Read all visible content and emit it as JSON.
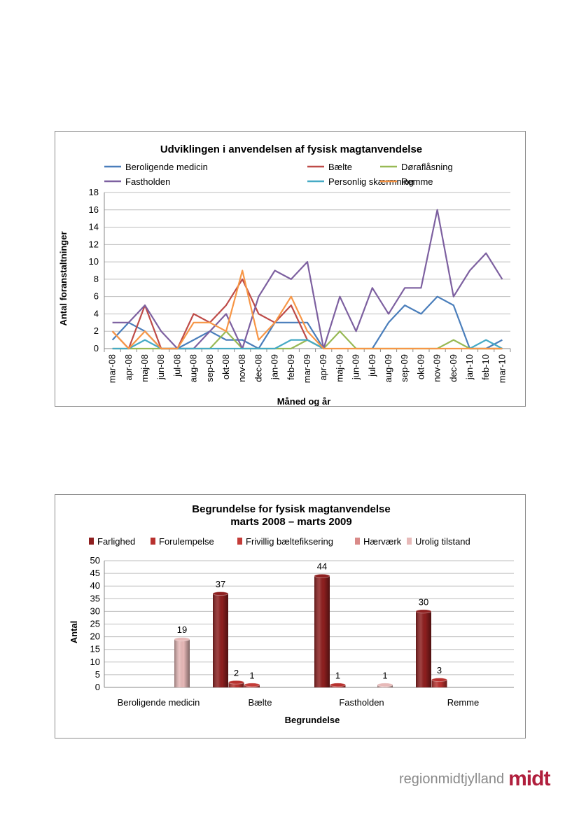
{
  "chart_data": [
    {
      "type": "line",
      "title": "Udviklingen i anvendelsen af fysisk magtanvendelse",
      "xlabel": "Måned og år",
      "ylabel": "Antal foranstaltninger",
      "ylim": [
        0,
        18
      ],
      "yticks": [
        "0",
        "2",
        "4",
        "6",
        "8",
        "10",
        "12",
        "14",
        "16",
        "18"
      ],
      "grid": true,
      "legend_position": "top",
      "categories": [
        "mar-08",
        "apr-08",
        "maj-08",
        "jun-08",
        "jul-08",
        "aug-08",
        "sep-08",
        "okt-08",
        "nov-08",
        "dec-08",
        "jan-09",
        "feb-09",
        "mar-09",
        "apr-09",
        "maj-09",
        "jun-09",
        "jul-09",
        "aug-09",
        "sep-09",
        "okt-09",
        "nov-09",
        "dec-09",
        "jan-10",
        "feb-10",
        "mar-10"
      ],
      "series": [
        {
          "name": "Beroligende medicin",
          "color": "#4a7ebb",
          "values": [
            1,
            3,
            2,
            0,
            0,
            1,
            2,
            1,
            1,
            0,
            3,
            3,
            3,
            0,
            null,
            null,
            0,
            3,
            5,
            4,
            6,
            5,
            0,
            0,
            1
          ]
        },
        {
          "name": "Bælte",
          "color": "#be4b48",
          "values": [
            2,
            0,
            5,
            0,
            0,
            4,
            3,
            5,
            8,
            4,
            3,
            5,
            1,
            0,
            null,
            null,
            null,
            null,
            null,
            null,
            null,
            null,
            null,
            0,
            0
          ]
        },
        {
          "name": "Døraflåsning",
          "color": "#98b954",
          "values": [
            0,
            0,
            0,
            0,
            0,
            0,
            0,
            2,
            0,
            0,
            0,
            0,
            1,
            0,
            2,
            0,
            0,
            0,
            0,
            0,
            0,
            1,
            0,
            0,
            0
          ]
        },
        {
          "name": "Fastholden",
          "color": "#7d60a0",
          "values": [
            3,
            3,
            5,
            2,
            0,
            0,
            2,
            4,
            0,
            6,
            9,
            8,
            10,
            0,
            6,
            2,
            7,
            4,
            7,
            7,
            16,
            6,
            9,
            11,
            8
          ]
        },
        {
          "name": "Personlig skærmning",
          "color": "#46aac5",
          "values": [
            0,
            0,
            1,
            0,
            0,
            0,
            0,
            0,
            0,
            0,
            0,
            1,
            1,
            0,
            null,
            null,
            null,
            null,
            null,
            null,
            null,
            null,
            0,
            1,
            0
          ]
        },
        {
          "name": "Remme",
          "color": "#f79646",
          "values": [
            2,
            0,
            2,
            0,
            0,
            3,
            3,
            2,
            9,
            1,
            3,
            6,
            2,
            0,
            0,
            0,
            0,
            0,
            0,
            0,
            0,
            0,
            0,
            0,
            0
          ]
        }
      ]
    },
    {
      "type": "bar",
      "title": "Begrundelse for fysisk magtanvendelse",
      "subtitle": "marts 2008 – marts 2009",
      "xlabel": "Begrundelse",
      "ylabel": "Antal",
      "ylim": [
        0,
        50
      ],
      "yticks": [
        "0",
        "5",
        "10",
        "15",
        "20",
        "25",
        "30",
        "35",
        "40",
        "45",
        "50"
      ],
      "grid": true,
      "legend_position": "top",
      "categories": [
        "Beroligende medicin",
        "Bælte",
        "Fastholden",
        "Remme"
      ],
      "series": [
        {
          "name": "Farlighed",
          "color": "#8e1f1f",
          "values": [
            0,
            37,
            44,
            30
          ]
        },
        {
          "name": "Forulempelse",
          "color": "#b8312e",
          "values": [
            0,
            2,
            1,
            3
          ]
        },
        {
          "name": "Frivillig bæltefiksering",
          "color": "#c43c38",
          "values": [
            0,
            1,
            0,
            0
          ]
        },
        {
          "name": "Hærværk",
          "color": "#d98a88",
          "values": [
            0,
            0,
            0,
            0
          ]
        },
        {
          "name": "Urolig tilstand",
          "color": "#e7b9b8",
          "values": [
            19,
            0,
            1,
            0
          ]
        }
      ],
      "data_labels": [
        {
          "series": 4,
          "cat": 0,
          "text": "19"
        },
        {
          "series": 0,
          "cat": 1,
          "text": "37"
        },
        {
          "series": 1,
          "cat": 1,
          "text": "2"
        },
        {
          "series": 2,
          "cat": 1,
          "text": "1"
        },
        {
          "series": 0,
          "cat": 2,
          "text": "44"
        },
        {
          "series": 1,
          "cat": 2,
          "text": "1"
        },
        {
          "series": 4,
          "cat": 2,
          "text": "1"
        },
        {
          "series": 0,
          "cat": 3,
          "text": "30"
        },
        {
          "series": 1,
          "cat": 3,
          "text": "3"
        }
      ]
    }
  ],
  "logo": {
    "part1": "region",
    "part2": "midt",
    "part3": "jylland",
    "mark": "midt"
  }
}
